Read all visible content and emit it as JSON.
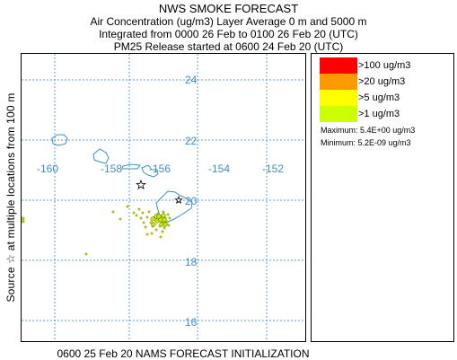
{
  "title": {
    "main": "NWS SMOKE FORECAST",
    "line2": "Air Concentration (ug/m3) Layer Average    0 m and  5000 m",
    "line3": "Integrated from 0000 26 Feb to 0100 26 Feb 20 (UTC)",
    "line4": "PM25 Release started at 0600 24 Feb 20 (UTC)"
  },
  "side_label": "Source ☆   at multiple locations      from   100 m",
  "bottom_label": "0600 25 Feb 20 NAMS FORECAST INITIALIZATION",
  "map": {
    "latitude_labels": [
      "24",
      "22",
      "20",
      "18",
      "16"
    ],
    "longitude_labels": [
      "-160",
      "-158",
      "-156",
      "-154",
      "-152"
    ],
    "colors": {
      "grid": "#5b9bd5",
      "coastline": "#3d8fc9",
      "label": "#3d8fc9",
      "plume_dot": "#c8e600"
    },
    "source_marker": "star-icon"
  },
  "legend": {
    "items": [
      {
        "label": ">100 ug/m3",
        "color": "#ff0000"
      },
      {
        "label": ">20 ug/m3",
        "color": "#ff9900"
      },
      {
        "label": ">5 ug/m3",
        "color": "#ffff00"
      },
      {
        "label": ">1 ug/m3",
        "color": "#ccff00"
      }
    ],
    "maximum": "Maximum: 5.4E+00 ug/m3",
    "minimum": "Minimum: 5.2E-09 ug/m3"
  }
}
